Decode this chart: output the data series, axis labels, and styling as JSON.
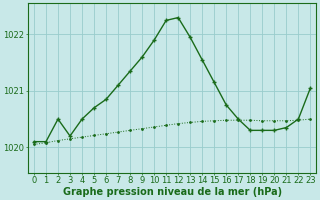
{
  "title": "Graphe pression niveau de la mer (hPa)",
  "background_color": "#c8e8e8",
  "plot_background": "#c8e8e8",
  "grid_color": "#99cccc",
  "line_color": "#1a6b1a",
  "xlim": [
    -0.5,
    23.5
  ],
  "ylim": [
    1019.55,
    1022.55
  ],
  "yticks": [
    1020,
    1021,
    1022
  ],
  "xticks": [
    0,
    1,
    2,
    3,
    4,
    5,
    6,
    7,
    8,
    9,
    10,
    11,
    12,
    13,
    14,
    15,
    16,
    17,
    18,
    19,
    20,
    21,
    22,
    23
  ],
  "solid_x": [
    0,
    1,
    2,
    3,
    4,
    5,
    6,
    7,
    8,
    9,
    10,
    11,
    12,
    13,
    14,
    15,
    16,
    17,
    18,
    19,
    20,
    21,
    22,
    23
  ],
  "solid_y": [
    1020.1,
    1020.1,
    1020.5,
    1020.2,
    1020.5,
    1020.7,
    1020.85,
    1021.1,
    1021.35,
    1021.6,
    1021.9,
    1022.25,
    1022.3,
    1021.95,
    1021.55,
    1021.15,
    1020.75,
    1020.5,
    1020.3,
    1020.3,
    1020.3,
    1020.35,
    1020.5,
    1021.05
  ],
  "dotted_x": [
    0,
    1,
    2,
    3,
    4,
    5,
    6,
    7,
    8,
    9,
    10,
    11,
    12,
    13,
    14,
    15,
    16,
    17,
    18,
    19,
    20,
    21,
    22,
    23
  ],
  "dotted_y": [
    1020.05,
    1020.08,
    1020.12,
    1020.15,
    1020.18,
    1020.21,
    1020.24,
    1020.27,
    1020.3,
    1020.33,
    1020.36,
    1020.39,
    1020.42,
    1020.44,
    1020.46,
    1020.47,
    1020.48,
    1020.48,
    1020.48,
    1020.47,
    1020.47,
    1020.47,
    1020.48,
    1020.5
  ],
  "tick_fontsize": 6,
  "title_fontsize": 7,
  "tick_color": "#1a6b1a"
}
